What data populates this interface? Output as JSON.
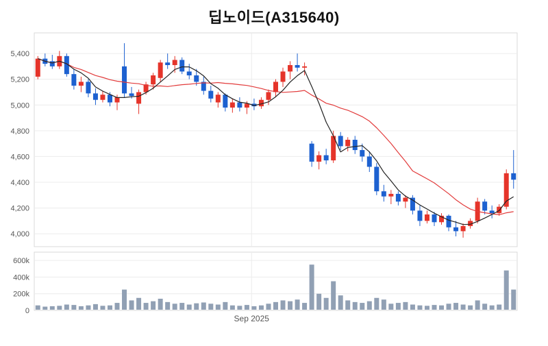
{
  "title": "딥노이드(A315640)",
  "chart_data": {
    "type": "candlestick",
    "title": "딥노이드(A315640)",
    "legend_position": "none",
    "grid": true,
    "price_axis": {
      "min": 3900,
      "max": 5560,
      "ticks": [
        {
          "label": "5,400",
          "value": 5400
        },
        {
          "label": "5,200",
          "value": 5200
        },
        {
          "label": "5,000",
          "value": 5000
        },
        {
          "label": "4,800",
          "value": 4800
        },
        {
          "label": "4,600",
          "value": 4600
        },
        {
          "label": "4,400",
          "value": 4400
        },
        {
          "label": "4,200",
          "value": 4200
        },
        {
          "label": "4,000",
          "value": 4000
        }
      ]
    },
    "volume_axis": {
      "max": 700000,
      "ticks": [
        {
          "label": "600k",
          "value": 600000
        },
        {
          "label": "400k",
          "value": 400000
        },
        {
          "label": "200k",
          "value": 200000
        },
        {
          "label": "0",
          "value": 0
        }
      ]
    },
    "x_axis": {
      "label": "Sep 2025",
      "position_frac": 0.45
    },
    "colors": {
      "up": "#e5342a",
      "down": "#1d61d0",
      "ma_short": "#222222",
      "ma_long": "#e23b3b",
      "volume": "#91a0b4",
      "grid": "#ececec",
      "border": "#d9d9d9",
      "axis_text": "#555555",
      "panel_bg": "#ffffff"
    },
    "moving_averages": [
      {
        "name": "MA-long",
        "period": 15,
        "color_key": "ma_long",
        "width": 1.2
      },
      {
        "name": "MA-short",
        "period": 5,
        "color_key": "ma_short",
        "width": 1.2
      }
    ],
    "candles": {
      "fields": [
        "open",
        "high",
        "low",
        "close",
        "volume"
      ],
      "rows": [
        [
          5220,
          5380,
          5200,
          5360,
          60000
        ],
        [
          5360,
          5400,
          5300,
          5320,
          45000
        ],
        [
          5340,
          5390,
          5280,
          5300,
          50000
        ],
        [
          5300,
          5420,
          5280,
          5380,
          55000
        ],
        [
          5380,
          5400,
          5220,
          5240,
          70000
        ],
        [
          5240,
          5280,
          5120,
          5150,
          65000
        ],
        [
          5150,
          5220,
          5100,
          5180,
          50000
        ],
        [
          5180,
          5200,
          5060,
          5090,
          60000
        ],
        [
          5090,
          5130,
          5000,
          5040,
          75000
        ],
        [
          5040,
          5110,
          5020,
          5080,
          55000
        ],
        [
          5080,
          5100,
          4990,
          5020,
          60000
        ],
        [
          5020,
          5080,
          4960,
          5060,
          90000
        ],
        [
          5300,
          5480,
          5060,
          5090,
          250000
        ],
        [
          5090,
          5140,
          5050,
          5070,
          120000
        ],
        [
          5010,
          5120,
          4930,
          5100,
          150000
        ],
        [
          5100,
          5180,
          5080,
          5160,
          90000
        ],
        [
          5160,
          5250,
          5120,
          5230,
          110000
        ],
        [
          5210,
          5350,
          5180,
          5330,
          140000
        ],
        [
          5330,
          5400,
          5280,
          5310,
          100000
        ],
        [
          5310,
          5380,
          5250,
          5350,
          80000
        ],
        [
          5350,
          5370,
          5240,
          5260,
          90000
        ],
        [
          5260,
          5320,
          5200,
          5230,
          70000
        ],
        [
          5230,
          5280,
          5150,
          5180,
          85000
        ],
        [
          5180,
          5220,
          5080,
          5110,
          95000
        ],
        [
          5110,
          5150,
          5020,
          5050,
          80000
        ],
        [
          5020,
          5100,
          4980,
          5080,
          70000
        ],
        [
          5080,
          5090,
          4950,
          4980,
          100000
        ],
        [
          4980,
          5050,
          4940,
          5020,
          60000
        ],
        [
          5020,
          5060,
          4950,
          4980,
          55000
        ],
        [
          4980,
          5030,
          4930,
          5010,
          65000
        ],
        [
          5010,
          5050,
          4960,
          4990,
          50000
        ],
        [
          4990,
          5060,
          4970,
          5040,
          60000
        ],
        [
          5040,
          5120,
          5000,
          5100,
          80000
        ],
        [
          5100,
          5200,
          5060,
          5180,
          100000
        ],
        [
          5180,
          5290,
          5140,
          5260,
          120000
        ],
        [
          5260,
          5340,
          5200,
          5310,
          110000
        ],
        [
          5310,
          5400,
          5260,
          5290,
          130000
        ],
        [
          5290,
          5330,
          5230,
          5300,
          90000
        ],
        [
          4700,
          4720,
          4520,
          4560,
          550000
        ],
        [
          4560,
          4640,
          4500,
          4610,
          200000
        ],
        [
          4610,
          4660,
          4540,
          4570,
          150000
        ],
        [
          4570,
          4800,
          4550,
          4760,
          350000
        ],
        [
          4760,
          4790,
          4650,
          4680,
          180000
        ],
        [
          4680,
          4750,
          4640,
          4730,
          120000
        ],
        [
          4730,
          4760,
          4620,
          4650,
          100000
        ],
        [
          4650,
          4700,
          4560,
          4600,
          90000
        ],
        [
          4600,
          4640,
          4480,
          4520,
          110000
        ],
        [
          4520,
          4550,
          4300,
          4330,
          150000
        ],
        [
          4330,
          4380,
          4250,
          4290,
          130000
        ],
        [
          4290,
          4340,
          4230,
          4310,
          80000
        ],
        [
          4310,
          4330,
          4220,
          4250,
          90000
        ],
        [
          4250,
          4300,
          4200,
          4280,
          100000
        ],
        [
          4280,
          4300,
          4150,
          4180,
          70000
        ],
        [
          4180,
          4220,
          4060,
          4100,
          60000
        ],
        [
          4100,
          4180,
          4080,
          4150,
          55000
        ],
        [
          4150,
          4170,
          4060,
          4090,
          65000
        ],
        [
          4090,
          4160,
          4070,
          4140,
          60000
        ],
        [
          4140,
          4150,
          4020,
          4050,
          80000
        ],
        [
          4050,
          4100,
          3980,
          4020,
          90000
        ],
        [
          4020,
          4080,
          3970,
          4060,
          70000
        ],
        [
          4060,
          4120,
          4040,
          4100,
          60000
        ],
        [
          4100,
          4280,
          4080,
          4250,
          120000
        ],
        [
          4250,
          4270,
          4150,
          4180,
          80000
        ],
        [
          4180,
          4220,
          4120,
          4160,
          60000
        ],
        [
          4160,
          4230,
          4140,
          4210,
          70000
        ],
        [
          4210,
          4500,
          4190,
          4470,
          480000
        ],
        [
          4470,
          4650,
          4350,
          4420,
          250000
        ]
      ]
    }
  }
}
